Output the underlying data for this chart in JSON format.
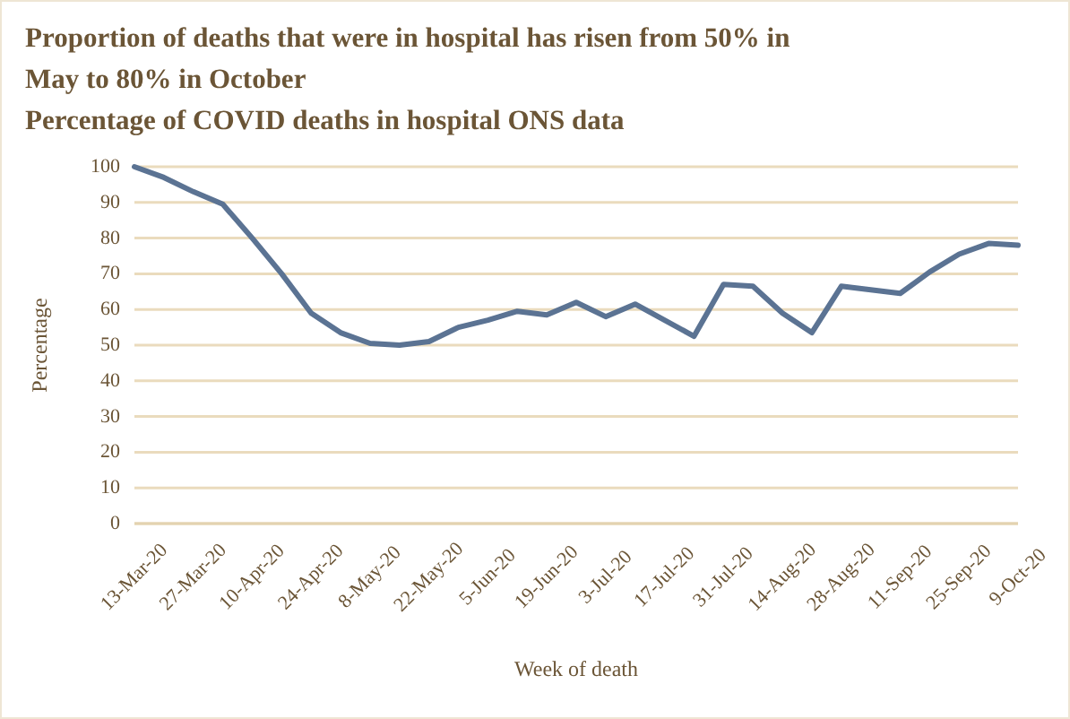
{
  "chart_data": {
    "type": "line",
    "title": "Proportion of deaths that were in hospital has risen from 50% in May to 80% in October",
    "subtitle": "Percentage of COVID deaths in hospital ONS data",
    "xlabel": "Week of death",
    "ylabel": "Percentage",
    "categories": [
      "13-Mar-20",
      null,
      "27-Mar-20",
      null,
      "10-Apr-20",
      null,
      "24-Apr-20",
      null,
      "8-May-20",
      null,
      "22-May-20",
      null,
      "5-Jun-20",
      null,
      "19-Jun-20",
      null,
      "3-Jul-20",
      null,
      "17-Jul-20",
      null,
      "31-Jul-20",
      null,
      "14-Aug-20",
      null,
      "28-Aug-20",
      null,
      "11-Sep-20",
      null,
      "25-Sep-20",
      null,
      "9-Oct-20"
    ],
    "series": [
      {
        "color": "#5b7393",
        "values": [
          100,
          97,
          93,
          89.5,
          80,
          70,
          59,
          53.5,
          50.5,
          50,
          51,
          55,
          57,
          59.5,
          58.5,
          62,
          58,
          61.5,
          57,
          52.5,
          67,
          66.5,
          59,
          53.5,
          66.5,
          65.5,
          64.5,
          70.5,
          75.5,
          78.5,
          78
        ]
      }
    ],
    "ylim": [
      0,
      100
    ],
    "yticks": [
      0,
      10,
      20,
      30,
      40,
      50,
      60,
      70,
      80,
      90,
      100
    ],
    "grid": "y",
    "marker": "none",
    "line_style": "solid"
  }
}
